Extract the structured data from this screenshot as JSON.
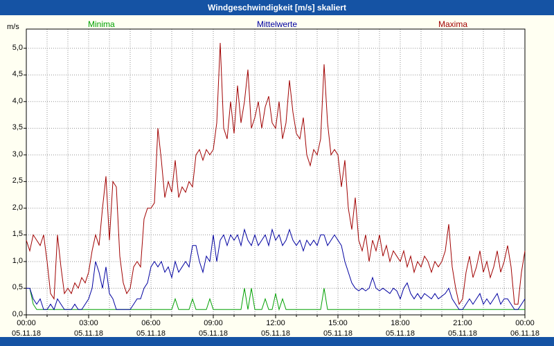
{
  "header": {
    "title": "Windgeschwindigkeit [m/s] skaliert"
  },
  "colors": {
    "title_bar_bg": "#1553a4",
    "title_bar_fg": "#ffffff",
    "page_bg": "#fffff2",
    "plot_bg": "#ffffff",
    "grid": "#909090",
    "axis": "#000000",
    "minima": "#00a000",
    "mittelwerte": "#0000a0",
    "maxima": "#a00000"
  },
  "chart_data": {
    "type": "line",
    "title": "Windgeschwindigkeit [m/s] skaliert",
    "ylabel": "m/s",
    "ylim": [
      0,
      5.36
    ],
    "grid": "dotted",
    "legend_position": "top",
    "sample_step_minutes": 10,
    "x_minor_step_hours": 1,
    "y_tick_labels": [
      "0,0",
      "0,5",
      "1,0",
      "1,5",
      "2,0",
      "2,5",
      "3,0",
      "3,5",
      "4,0",
      "4,5",
      "5,0"
    ],
    "y_tick_values": [
      0,
      0.5,
      1,
      1.5,
      2,
      2.5,
      3,
      3.5,
      4,
      4.5,
      5
    ],
    "x_ticks": [
      {
        "hour": 0,
        "time": "00:00",
        "date": "05.11.18"
      },
      {
        "hour": 3,
        "time": "03:00",
        "date": "05.11.18"
      },
      {
        "hour": 6,
        "time": "06:00",
        "date": "05.11.18"
      },
      {
        "hour": 9,
        "time": "09:00",
        "date": "05.11.18"
      },
      {
        "hour": 12,
        "time": "12:00",
        "date": "05.11.18"
      },
      {
        "hour": 15,
        "time": "15:00",
        "date": "05.11.18"
      },
      {
        "hour": 18,
        "time": "18:00",
        "date": "05.11.18"
      },
      {
        "hour": 21,
        "time": "21:00",
        "date": "05.11.18"
      },
      {
        "hour": 24,
        "time": "00:00",
        "date": "06.11.18"
      }
    ],
    "series": [
      {
        "name": "Minima",
        "color": "#00a000",
        "values": [
          0.5,
          0.5,
          0.2,
          0.1,
          0.1,
          0.1,
          0.1,
          0.1,
          0.1,
          0.1,
          0.1,
          0.1,
          0.1,
          0.1,
          0.1,
          0.1,
          0.1,
          0.1,
          0.1,
          0.1,
          0.1,
          0.1,
          0.1,
          0.1,
          0.1,
          0.1,
          0.1,
          0.1,
          0.1,
          0.1,
          0.1,
          0.1,
          0.1,
          0.1,
          0.1,
          0.1,
          0.1,
          0.1,
          0.1,
          0.1,
          0.1,
          0.1,
          0.1,
          0.3,
          0.1,
          0.1,
          0.1,
          0.1,
          0.3,
          0.1,
          0.1,
          0.1,
          0.1,
          0.3,
          0.1,
          0.1,
          0.1,
          0.1,
          0.1,
          0.1,
          0.1,
          0.1,
          0.1,
          0.5,
          0.1,
          0.5,
          0.1,
          0.1,
          0.1,
          0.3,
          0.1,
          0.1,
          0.4,
          0.1,
          0.3,
          0.1,
          0.1,
          0.1,
          0.1,
          0.1,
          0.1,
          0.1,
          0.1,
          0.1,
          0.1,
          0.1,
          0.5,
          0.1,
          0.1,
          0.1,
          0.1,
          0.1,
          0.1,
          0.1,
          0.1,
          0.1,
          0.1,
          0.1,
          0.1,
          0.1,
          0.1,
          0.1,
          0.1,
          0.1,
          0.1,
          0.1,
          0.1,
          0.1,
          0.1,
          0.1,
          0.1,
          0.1,
          0.1,
          0.1,
          0.1,
          0.1,
          0.1,
          0.1,
          0.1,
          0.1,
          0.1,
          0.1,
          0.1,
          0.1,
          0.1,
          0.1,
          0.1,
          0.1,
          0.1,
          0.1,
          0.1,
          0.1,
          0.1,
          0.1,
          0.1,
          0.1,
          0.1,
          0.1,
          0.1,
          0.1,
          0.1,
          0.1,
          0.1,
          0.1,
          0.1
        ]
      },
      {
        "name": "Mittelwerte",
        "color": "#0000a0",
        "values": [
          0.5,
          0.5,
          0.3,
          0.2,
          0.3,
          0.1,
          0.1,
          0.2,
          0.1,
          0.3,
          0.2,
          0.1,
          0.1,
          0.1,
          0.2,
          0.1,
          0.1,
          0.2,
          0.3,
          0.5,
          1.0,
          0.8,
          0.5,
          0.9,
          0.4,
          0.3,
          0.1,
          0.1,
          0.1,
          0.1,
          0.1,
          0.2,
          0.3,
          0.3,
          0.5,
          0.6,
          0.9,
          1.0,
          0.9,
          1.0,
          0.8,
          0.9,
          0.7,
          1.0,
          0.8,
          0.9,
          1.0,
          0.9,
          1.3,
          1.3,
          1.0,
          0.8,
          1.1,
          1.0,
          1.5,
          1.0,
          1.4,
          1.5,
          1.3,
          1.5,
          1.4,
          1.5,
          1.3,
          1.6,
          1.4,
          1.3,
          1.5,
          1.3,
          1.4,
          1.5,
          1.3,
          1.6,
          1.4,
          1.5,
          1.3,
          1.4,
          1.6,
          1.4,
          1.3,
          1.4,
          1.2,
          1.4,
          1.3,
          1.4,
          1.3,
          1.5,
          1.5,
          1.3,
          1.4,
          1.5,
          1.4,
          1.3,
          1.0,
          0.8,
          0.6,
          0.5,
          0.45,
          0.5,
          0.45,
          0.5,
          0.7,
          0.5,
          0.45,
          0.5,
          0.45,
          0.4,
          0.5,
          0.45,
          0.3,
          0.5,
          0.6,
          0.4,
          0.3,
          0.4,
          0.3,
          0.4,
          0.35,
          0.3,
          0.4,
          0.3,
          0.35,
          0.4,
          0.5,
          0.3,
          0.2,
          0.1,
          0.1,
          0.2,
          0.3,
          0.2,
          0.3,
          0.4,
          0.2,
          0.3,
          0.2,
          0.3,
          0.4,
          0.2,
          0.3,
          0.3,
          0.2,
          0.1,
          0.1,
          0.2,
          0.3
        ]
      },
      {
        "name": "Maxima",
        "color": "#a00000",
        "values": [
          1.4,
          1.2,
          1.5,
          1.4,
          1.3,
          1.5,
          1.0,
          0.4,
          0.3,
          1.5,
          0.9,
          0.4,
          0.5,
          0.4,
          0.6,
          0.5,
          0.7,
          0.6,
          0.8,
          1.2,
          1.5,
          1.3,
          2.0,
          2.6,
          1.4,
          2.5,
          2.4,
          1.1,
          0.6,
          0.4,
          0.5,
          0.9,
          1.0,
          0.9,
          1.8,
          2.0,
          2.0,
          2.1,
          3.5,
          2.9,
          2.2,
          2.5,
          2.3,
          2.9,
          2.2,
          2.4,
          2.3,
          2.5,
          2.4,
          3.0,
          3.1,
          2.9,
          3.1,
          3.0,
          3.1,
          3.6,
          5.1,
          3.5,
          3.3,
          4.0,
          3.4,
          4.3,
          3.6,
          4.0,
          4.6,
          3.5,
          3.7,
          4.0,
          3.5,
          3.9,
          4.1,
          3.6,
          3.5,
          4.0,
          3.3,
          3.6,
          4.4,
          3.8,
          3.4,
          3.3,
          3.7,
          3.0,
          2.8,
          3.1,
          3.0,
          3.3,
          4.7,
          3.6,
          3.0,
          3.1,
          3.0,
          2.4,
          2.9,
          2.0,
          1.6,
          2.2,
          1.4,
          1.2,
          1.5,
          1.0,
          1.4,
          1.2,
          1.5,
          1.1,
          1.3,
          1.0,
          1.2,
          1.1,
          1.0,
          1.2,
          0.9,
          1.1,
          0.8,
          1.0,
          0.9,
          1.1,
          1.0,
          0.8,
          1.0,
          0.9,
          1.0,
          1.2,
          1.7,
          0.9,
          0.5,
          0.2,
          0.3,
          0.8,
          1.1,
          0.7,
          0.9,
          1.2,
          0.8,
          1.0,
          0.7,
          0.9,
          1.2,
          0.8,
          1.0,
          1.3,
          0.9,
          0.2,
          0.2,
          0.8,
          1.2
        ]
      }
    ]
  }
}
